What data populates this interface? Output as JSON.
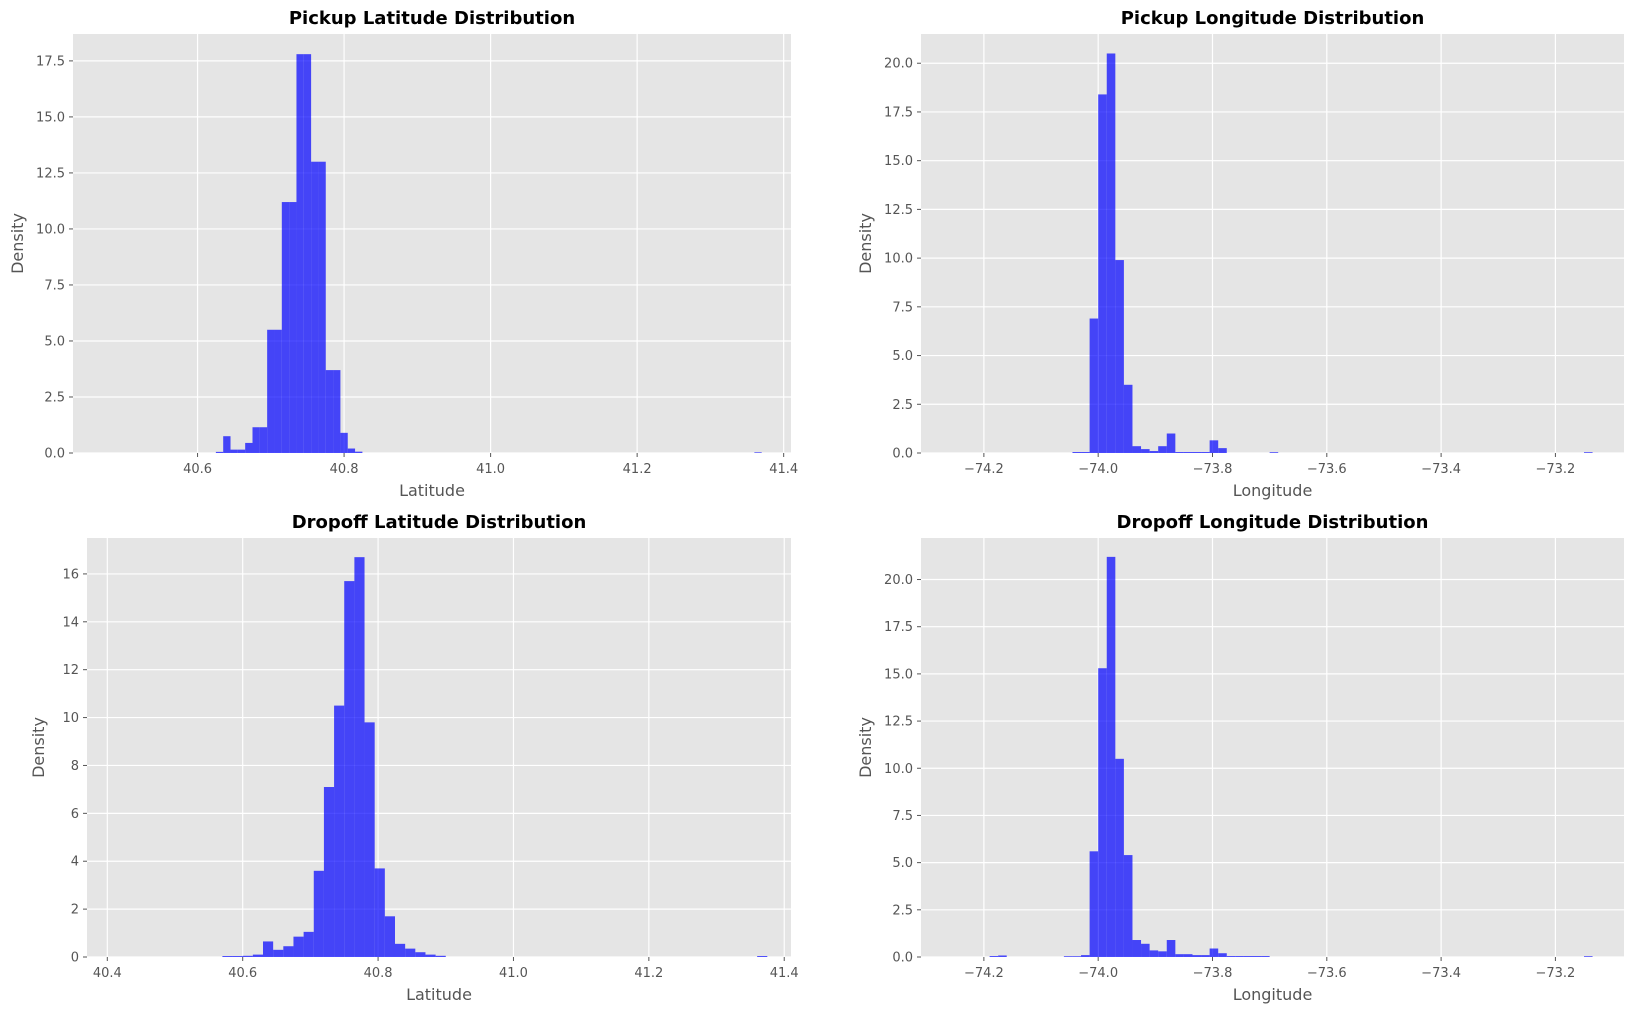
{
  "figure": {
    "background": "#ffffff",
    "axes_facecolor": "#e5e5e5",
    "grid_color": "#ffffff",
    "tick_color": "#555555",
    "label_color": "#555555",
    "title_color": "#000000",
    "bar_color": "#0000ff",
    "bar_opacity": 0.7
  },
  "chart_data": [
    {
      "type": "bar",
      "title": "Pickup Latitude Distribution",
      "xlabel": "Latitude",
      "ylabel": "Density",
      "xlim": [
        40.43,
        41.41
      ],
      "ylim": [
        0,
        18.7
      ],
      "xticks": [
        40.6,
        40.8,
        41.0,
        41.2,
        41.4
      ],
      "xtick_labels": [
        "40.6",
        "40.8",
        "41.0",
        "41.2",
        "41.4"
      ],
      "yticks": [
        0,
        2.5,
        5.0,
        7.5,
        10.0,
        12.5,
        15.0,
        17.5
      ],
      "ytick_labels": [
        "0.0",
        "2.5",
        "5.0",
        "7.5",
        "10.0",
        "12.5",
        "15.0",
        "17.5"
      ],
      "grid": true,
      "bins": [
        {
          "x0": 40.625,
          "x1": 40.635,
          "y": 0.05
        },
        {
          "x0": 40.635,
          "x1": 40.645,
          "y": 0.75
        },
        {
          "x0": 40.645,
          "x1": 40.655,
          "y": 0.15
        },
        {
          "x0": 40.655,
          "x1": 40.665,
          "y": 0.15
        },
        {
          "x0": 40.665,
          "x1": 40.675,
          "y": 0.45
        },
        {
          "x0": 40.675,
          "x1": 40.685,
          "y": 1.15
        },
        {
          "x0": 40.685,
          "x1": 40.695,
          "y": 1.15
        },
        {
          "x0": 40.695,
          "x1": 40.705,
          "y": 5.5
        },
        {
          "x0": 40.705,
          "x1": 40.715,
          "y": 5.5
        },
        {
          "x0": 40.715,
          "x1": 40.725,
          "y": 11.2
        },
        {
          "x0": 40.725,
          "x1": 40.735,
          "y": 11.2
        },
        {
          "x0": 40.735,
          "x1": 40.745,
          "y": 17.8
        },
        {
          "x0": 40.745,
          "x1": 40.755,
          "y": 17.8
        },
        {
          "x0": 40.755,
          "x1": 40.765,
          "y": 13.0
        },
        {
          "x0": 40.765,
          "x1": 40.775,
          "y": 13.0
        },
        {
          "x0": 40.775,
          "x1": 40.785,
          "y": 3.7
        },
        {
          "x0": 40.785,
          "x1": 40.795,
          "y": 3.7
        },
        {
          "x0": 40.795,
          "x1": 40.805,
          "y": 0.9
        },
        {
          "x0": 40.805,
          "x1": 40.815,
          "y": 0.2
        },
        {
          "x0": 40.815,
          "x1": 40.825,
          "y": 0.06
        },
        {
          "x0": 41.36,
          "x1": 41.37,
          "y": 0.03
        }
      ]
    },
    {
      "type": "bar",
      "title": "Pickup Longitude Distribution",
      "xlabel": "Longitude",
      "ylabel": "Density",
      "xlim": [
        -74.31,
        -73.08
      ],
      "ylim": [
        0,
        21.5
      ],
      "xticks": [
        -74.2,
        -74.0,
        -73.8,
        -73.6,
        -73.4,
        -73.2
      ],
      "xtick_labels": [
        "−74.2",
        "−74.0",
        "−73.8",
        "−73.6",
        "−73.4",
        "−73.2"
      ],
      "yticks": [
        0,
        2.5,
        5.0,
        7.5,
        10.0,
        12.5,
        15.0,
        17.5,
        20.0
      ],
      "ytick_labels": [
        "0.0",
        "2.5",
        "5.0",
        "7.5",
        "10.0",
        "12.5",
        "15.0",
        "17.5",
        "20.0"
      ],
      "grid": true,
      "bins": [
        {
          "x0": -74.045,
          "x1": -74.03,
          "y": 0.05
        },
        {
          "x0": -74.03,
          "x1": -74.015,
          "y": 0.05
        },
        {
          "x0": -74.015,
          "x1": -74.0,
          "y": 6.9
        },
        {
          "x0": -74.0,
          "x1": -73.985,
          "y": 18.4
        },
        {
          "x0": -73.985,
          "x1": -73.97,
          "y": 20.5
        },
        {
          "x0": -73.97,
          "x1": -73.955,
          "y": 9.9
        },
        {
          "x0": -73.955,
          "x1": -73.94,
          "y": 3.5
        },
        {
          "x0": -73.94,
          "x1": -73.925,
          "y": 0.35
        },
        {
          "x0": -73.925,
          "x1": -73.91,
          "y": 0.2
        },
        {
          "x0": -73.91,
          "x1": -73.895,
          "y": 0.1
        },
        {
          "x0": -73.895,
          "x1": -73.88,
          "y": 0.35
        },
        {
          "x0": -73.88,
          "x1": -73.865,
          "y": 1.0
        },
        {
          "x0": -73.865,
          "x1": -73.85,
          "y": 0.05
        },
        {
          "x0": -73.85,
          "x1": -73.835,
          "y": 0.05
        },
        {
          "x0": -73.835,
          "x1": -73.82,
          "y": 0.05
        },
        {
          "x0": -73.82,
          "x1": -73.805,
          "y": 0.05
        },
        {
          "x0": -73.805,
          "x1": -73.79,
          "y": 0.65
        },
        {
          "x0": -73.79,
          "x1": -73.775,
          "y": 0.25
        },
        {
          "x0": -73.7,
          "x1": -73.685,
          "y": 0.04
        },
        {
          "x0": -73.15,
          "x1": -73.135,
          "y": 0.04
        }
      ]
    },
    {
      "type": "bar",
      "title": "Dropoff Latitude Distribution",
      "xlabel": "Latitude",
      "ylabel": "Density",
      "xlim": [
        40.37,
        41.41
      ],
      "ylim": [
        0,
        17.5
      ],
      "xticks": [
        40.4,
        40.6,
        40.8,
        41.0,
        41.2,
        41.4
      ],
      "xtick_labels": [
        "40.4",
        "40.6",
        "40.8",
        "41.0",
        "41.2",
        "41.4"
      ],
      "yticks": [
        0,
        2,
        4,
        6,
        8,
        10,
        12,
        14,
        16
      ],
      "ytick_labels": [
        "0",
        "2",
        "4",
        "6",
        "8",
        "10",
        "12",
        "14",
        "16"
      ],
      "grid": true,
      "bins": [
        {
          "x0": 40.57,
          "x1": 40.585,
          "y": 0.04
        },
        {
          "x0": 40.585,
          "x1": 40.6,
          "y": 0.04
        },
        {
          "x0": 40.6,
          "x1": 40.615,
          "y": 0.05
        },
        {
          "x0": 40.615,
          "x1": 40.63,
          "y": 0.1
        },
        {
          "x0": 40.63,
          "x1": 40.645,
          "y": 0.65
        },
        {
          "x0": 40.645,
          "x1": 40.66,
          "y": 0.3
        },
        {
          "x0": 40.66,
          "x1": 40.675,
          "y": 0.45
        },
        {
          "x0": 40.675,
          "x1": 40.69,
          "y": 0.85
        },
        {
          "x0": 40.69,
          "x1": 40.705,
          "y": 1.05
        },
        {
          "x0": 40.705,
          "x1": 40.72,
          "y": 3.6
        },
        {
          "x0": 40.72,
          "x1": 40.735,
          "y": 7.1
        },
        {
          "x0": 40.735,
          "x1": 40.75,
          "y": 10.5
        },
        {
          "x0": 40.75,
          "x1": 40.765,
          "y": 15.7
        },
        {
          "x0": 40.765,
          "x1": 40.78,
          "y": 16.7
        },
        {
          "x0": 40.78,
          "x1": 40.795,
          "y": 9.8
        },
        {
          "x0": 40.795,
          "x1": 40.81,
          "y": 3.7
        },
        {
          "x0": 40.81,
          "x1": 40.825,
          "y": 1.7
        },
        {
          "x0": 40.825,
          "x1": 40.84,
          "y": 0.55
        },
        {
          "x0": 40.84,
          "x1": 40.855,
          "y": 0.35
        },
        {
          "x0": 40.855,
          "x1": 40.87,
          "y": 0.2
        },
        {
          "x0": 40.87,
          "x1": 40.885,
          "y": 0.1
        },
        {
          "x0": 40.885,
          "x1": 40.9,
          "y": 0.05
        },
        {
          "x0": 41.36,
          "x1": 41.375,
          "y": 0.04
        }
      ]
    },
    {
      "type": "bar",
      "title": "Dropoff Longitude Distribution",
      "xlabel": "Longitude",
      "ylabel": "Density",
      "xlim": [
        -74.31,
        -73.08
      ],
      "ylim": [
        0,
        22.2
      ],
      "xticks": [
        -74.2,
        -74.0,
        -73.8,
        -73.6,
        -73.4,
        -73.2
      ],
      "xtick_labels": [
        "−74.2",
        "−74.0",
        "−73.8",
        "−73.6",
        "−73.4",
        "−73.2"
      ],
      "yticks": [
        0,
        2.5,
        5.0,
        7.5,
        10.0,
        12.5,
        15.0,
        17.5,
        20.0
      ],
      "ytick_labels": [
        "0.0",
        "2.5",
        "5.0",
        "7.5",
        "10.0",
        "12.5",
        "15.0",
        "17.5",
        "20.0"
      ],
      "grid": true,
      "bins": [
        {
          "x0": -74.19,
          "x1": -74.175,
          "y": 0.05
        },
        {
          "x0": -74.175,
          "x1": -74.16,
          "y": 0.08
        },
        {
          "x0": -74.06,
          "x1": -74.045,
          "y": 0.04
        },
        {
          "x0": -74.045,
          "x1": -74.03,
          "y": 0.04
        },
        {
          "x0": -74.03,
          "x1": -74.015,
          "y": 0.1
        },
        {
          "x0": -74.015,
          "x1": -74.0,
          "y": 5.6
        },
        {
          "x0": -74.0,
          "x1": -73.985,
          "y": 15.3
        },
        {
          "x0": -73.985,
          "x1": -73.97,
          "y": 21.2
        },
        {
          "x0": -73.97,
          "x1": -73.955,
          "y": 10.5
        },
        {
          "x0": -73.955,
          "x1": -73.94,
          "y": 5.4
        },
        {
          "x0": -73.94,
          "x1": -73.925,
          "y": 0.9
        },
        {
          "x0": -73.925,
          "x1": -73.91,
          "y": 0.7
        },
        {
          "x0": -73.91,
          "x1": -73.895,
          "y": 0.35
        },
        {
          "x0": -73.895,
          "x1": -73.88,
          "y": 0.3
        },
        {
          "x0": -73.88,
          "x1": -73.865,
          "y": 0.9
        },
        {
          "x0": -73.865,
          "x1": -73.85,
          "y": 0.15
        },
        {
          "x0": -73.85,
          "x1": -73.835,
          "y": 0.15
        },
        {
          "x0": -73.835,
          "x1": -73.82,
          "y": 0.1
        },
        {
          "x0": -73.82,
          "x1": -73.805,
          "y": 0.1
        },
        {
          "x0": -73.805,
          "x1": -73.79,
          "y": 0.45
        },
        {
          "x0": -73.79,
          "x1": -73.775,
          "y": 0.2
        },
        {
          "x0": -73.775,
          "x1": -73.76,
          "y": 0.05
        },
        {
          "x0": -73.76,
          "x1": -73.745,
          "y": 0.05
        },
        {
          "x0": -73.745,
          "x1": -73.73,
          "y": 0.05
        },
        {
          "x0": -73.73,
          "x1": -73.715,
          "y": 0.05
        },
        {
          "x0": -73.715,
          "x1": -73.7,
          "y": 0.05
        },
        {
          "x0": -73.15,
          "x1": -73.135,
          "y": 0.04
        }
      ]
    }
  ]
}
